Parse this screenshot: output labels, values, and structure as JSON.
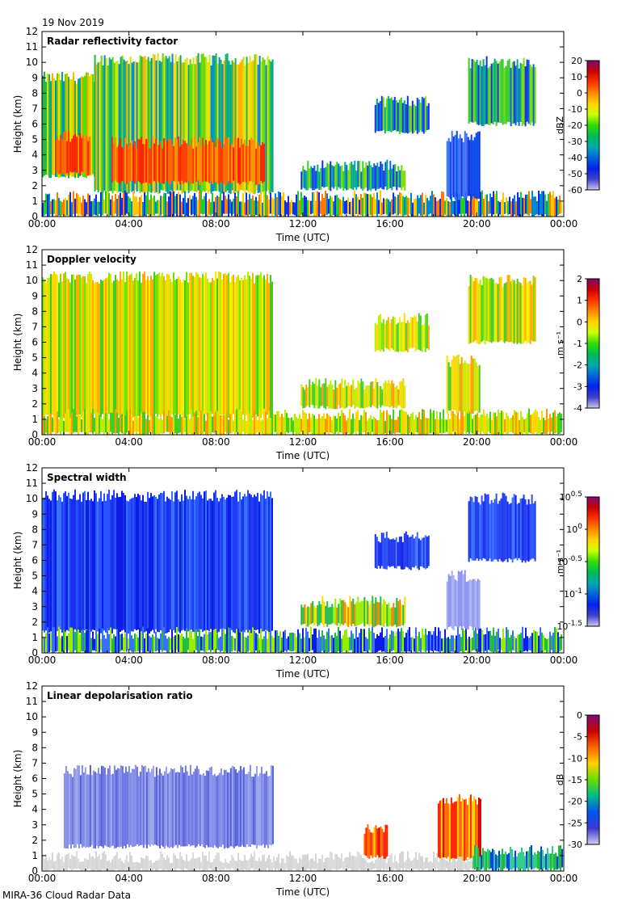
{
  "header": {
    "date": "19 Nov 2019"
  },
  "footer": {
    "title": "MIRA-36 Cloud Radar Data"
  },
  "colors": {
    "jet": [
      "#7a0b78",
      "#cc0000",
      "#ff3300",
      "#ff8800",
      "#ffd200",
      "#ccff00",
      "#33dd00",
      "#00bb55",
      "#00aaaa",
      "#0066dd",
      "#0022ee",
      "#4040cc",
      "#c8c8ee"
    ],
    "reflectivity": [
      "#ff2000",
      "#ff7a00",
      "#ffc800",
      "#ddee00",
      "#77dd00",
      "#22cc33",
      "#00b08c",
      "#008cd0",
      "#1030e8"
    ],
    "doppler": [
      "#ffd800",
      "#f0f000",
      "#b8ee00",
      "#7ae000",
      "#ffae00",
      "#44cc22"
    ],
    "width": [
      "#0a1ee6",
      "#1f3ef0",
      "#2a52ff",
      "#3a70ff",
      "#22bb44",
      "#99ee00",
      "#f0e000",
      "#e08a00"
    ],
    "depol": [
      "#6a73e0",
      "#7f8ae8",
      "#5560d8",
      "#9aa2ec",
      "#d8d8d8",
      "#cc0000",
      "#ff6600",
      "#22bb33",
      "#0040ff"
    ]
  },
  "chart_data": [
    {
      "type": "heatmap",
      "title": "Radar reflectivity factor",
      "xlabel": "Time (UTC)",
      "ylabel": "Height (km)",
      "x_ticks": [
        "00:00",
        "04:00",
        "08:00",
        "12:00",
        "16:00",
        "20:00",
        "00:00"
      ],
      "xlim": [
        0,
        24
      ],
      "ylim": [
        0,
        12
      ],
      "y_ticks": [
        0,
        1,
        2,
        3,
        4,
        5,
        6,
        7,
        8,
        9,
        10,
        11,
        12
      ],
      "colorbar": {
        "label": "dBZ",
        "range": [
          -60,
          20
        ],
        "ticks": [
          "20",
          "10",
          "0",
          "-10",
          "-20",
          "-30",
          "-40",
          "-50",
          "-60"
        ]
      },
      "palette": "reflectivity"
    },
    {
      "type": "heatmap",
      "title": "Doppler velocity",
      "xlabel": "Time (UTC)",
      "ylabel": "Height (km)",
      "x_ticks": [
        "00:00",
        "04:00",
        "08:00",
        "12:00",
        "16:00",
        "20:00",
        "00:00"
      ],
      "xlim": [
        0,
        24
      ],
      "ylim": [
        0,
        12
      ],
      "y_ticks": [
        0,
        1,
        2,
        3,
        4,
        5,
        6,
        7,
        8,
        9,
        10,
        11,
        12
      ],
      "colorbar": {
        "label": "m s⁻¹",
        "range": [
          -4,
          2
        ],
        "ticks": [
          "2",
          "1",
          "0",
          "-1",
          "-2",
          "-3",
          "-4"
        ]
      },
      "palette": "doppler"
    },
    {
      "type": "heatmap",
      "title": "Spectral width",
      "xlabel": "Time (UTC)",
      "ylabel": "Height (km)",
      "x_ticks": [
        "00:00",
        "04:00",
        "08:00",
        "12:00",
        "16:00",
        "20:00",
        "00:00"
      ],
      "xlim": [
        0,
        24
      ],
      "ylim": [
        0,
        12
      ],
      "y_ticks": [
        0,
        1,
        2,
        3,
        4,
        5,
        6,
        7,
        8,
        9,
        10,
        11,
        12
      ],
      "colorbar": {
        "label": "m s⁻¹",
        "range": [
          -1.5,
          0.5
        ],
        "log_base": 10,
        "ticks": [
          "10^0.5",
          "10^0",
          "10^-0.5",
          "10^-1",
          "10^-1.5"
        ]
      },
      "palette": "width"
    },
    {
      "type": "heatmap",
      "title": "Linear depolarisation ratio",
      "xlabel": "Time (UTC)",
      "ylabel": "Height (km)",
      "x_ticks": [
        "00:00",
        "04:00",
        "08:00",
        "12:00",
        "16:00",
        "20:00",
        "00:00"
      ],
      "xlim": [
        0,
        24
      ],
      "ylim": [
        0,
        12
      ],
      "y_ticks": [
        0,
        1,
        2,
        3,
        4,
        5,
        6,
        7,
        8,
        9,
        10,
        11,
        12
      ],
      "colorbar": {
        "label": "dB",
        "range": [
          -30,
          0
        ],
        "ticks": [
          "0",
          "-5",
          "-10",
          "-15",
          "-20",
          "-25",
          "-30"
        ]
      },
      "palette": "depol"
    }
  ]
}
